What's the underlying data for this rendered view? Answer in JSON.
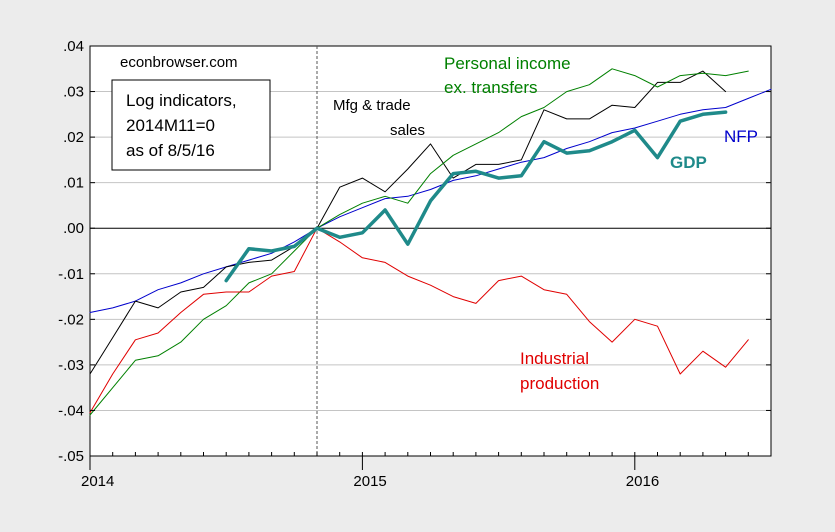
{
  "chart_data": {
    "type": "line",
    "title": "",
    "xlabel": "",
    "ylabel": "",
    "x_start": "2014-01",
    "x_end": "2016-07",
    "xlim": [
      "2014-01",
      "2016-07"
    ],
    "ylim": [
      -0.05,
      0.04
    ],
    "grid": true,
    "vline_at": "2014-11",
    "hline_at": 0,
    "legend_box": {
      "position": "top-left",
      "watermark": "econbrowser.com",
      "lines": [
        "Log indicators,",
        "2014M11=0",
        "as of 8/5/16"
      ]
    },
    "x_ticks": [
      {
        "date": "2014-01",
        "label": "2014"
      },
      {
        "date": "2015-01",
        "label": "2015"
      },
      {
        "date": "2016-01",
        "label": "2016"
      }
    ],
    "y_ticks": [
      {
        "value": 0.04,
        "label": ".04"
      },
      {
        "value": 0.03,
        "label": ".03"
      },
      {
        "value": 0.02,
        "label": ".02"
      },
      {
        "value": 0.01,
        "label": ".01"
      },
      {
        "value": 0.0,
        "label": ".00"
      },
      {
        "value": -0.01,
        "label": "-.01"
      },
      {
        "value": -0.02,
        "label": "-.02"
      },
      {
        "value": -0.03,
        "label": "-.03"
      },
      {
        "value": -0.04,
        "label": "-.04"
      },
      {
        "value": -0.05,
        "label": "-.05"
      }
    ],
    "series": [
      {
        "name": "NFP",
        "color": "#0000cc",
        "width": 1,
        "points": [
          [
            "2014-01",
            -0.0185
          ],
          [
            "2014-02",
            -0.0175
          ],
          [
            "2014-03",
            -0.016
          ],
          [
            "2014-04",
            -0.0135
          ],
          [
            "2014-05",
            -0.012
          ],
          [
            "2014-06",
            -0.01
          ],
          [
            "2014-07",
            -0.0085
          ],
          [
            "2014-08",
            -0.007
          ],
          [
            "2014-09",
            -0.0055
          ],
          [
            "2014-10",
            -0.003
          ],
          [
            "2014-11",
            0.0
          ],
          [
            "2014-12",
            0.0025
          ],
          [
            "2015-01",
            0.0045
          ],
          [
            "2015-02",
            0.0065
          ],
          [
            "2015-03",
            0.007
          ],
          [
            "2015-04",
            0.0085
          ],
          [
            "2015-05",
            0.0105
          ],
          [
            "2015-06",
            0.0115
          ],
          [
            "2015-07",
            0.013
          ],
          [
            "2015-08",
            0.0145
          ],
          [
            "2015-09",
            0.0155
          ],
          [
            "2015-10",
            0.0175
          ],
          [
            "2015-11",
            0.019
          ],
          [
            "2015-12",
            0.021
          ],
          [
            "2016-01",
            0.022
          ],
          [
            "2016-02",
            0.0235
          ],
          [
            "2016-03",
            0.025
          ],
          [
            "2016-04",
            0.026
          ],
          [
            "2016-05",
            0.0265
          ],
          [
            "2016-06",
            0.0285
          ],
          [
            "2016-07",
            0.0305
          ]
        ]
      },
      {
        "name": "Mfg & trade sales",
        "color": "#000000",
        "width": 1,
        "points": [
          [
            "2014-01",
            -0.032
          ],
          [
            "2014-02",
            -0.024
          ],
          [
            "2014-03",
            -0.016
          ],
          [
            "2014-04",
            -0.0175
          ],
          [
            "2014-05",
            -0.014
          ],
          [
            "2014-06",
            -0.013
          ],
          [
            "2014-07",
            -0.0085
          ],
          [
            "2014-08",
            -0.0075
          ],
          [
            "2014-09",
            -0.007
          ],
          [
            "2014-10",
            -0.004
          ],
          [
            "2014-11",
            0.0
          ],
          [
            "2014-12",
            0.009
          ],
          [
            "2015-01",
            0.011
          ],
          [
            "2015-02",
            0.008
          ],
          [
            "2015-03",
            0.013
          ],
          [
            "2015-04",
            0.0185
          ],
          [
            "2015-05",
            0.011
          ],
          [
            "2015-06",
            0.014
          ],
          [
            "2015-07",
            0.014
          ],
          [
            "2015-08",
            0.015
          ],
          [
            "2015-09",
            0.026
          ],
          [
            "2015-10",
            0.024
          ],
          [
            "2015-11",
            0.024
          ],
          [
            "2015-12",
            0.027
          ],
          [
            "2016-01",
            0.0265
          ],
          [
            "2016-02",
            0.032
          ],
          [
            "2016-03",
            0.032
          ],
          [
            "2016-04",
            0.0345
          ],
          [
            "2016-05",
            0.03
          ]
        ]
      },
      {
        "name": "Personal income ex. transfers",
        "color": "#008000",
        "width": 1,
        "points": [
          [
            "2014-01",
            -0.041
          ],
          [
            "2014-02",
            -0.035
          ],
          [
            "2014-03",
            -0.029
          ],
          [
            "2014-04",
            -0.028
          ],
          [
            "2014-05",
            -0.025
          ],
          [
            "2014-06",
            -0.02
          ],
          [
            "2014-07",
            -0.017
          ],
          [
            "2014-08",
            -0.012
          ],
          [
            "2014-09",
            -0.01
          ],
          [
            "2014-10",
            -0.005
          ],
          [
            "2014-11",
            0.0
          ],
          [
            "2014-12",
            0.003
          ],
          [
            "2015-01",
            0.0055
          ],
          [
            "2015-02",
            0.007
          ],
          [
            "2015-03",
            0.0055
          ],
          [
            "2015-04",
            0.012
          ],
          [
            "2015-05",
            0.016
          ],
          [
            "2015-06",
            0.0185
          ],
          [
            "2015-07",
            0.021
          ],
          [
            "2015-08",
            0.0245
          ],
          [
            "2015-09",
            0.0265
          ],
          [
            "2015-10",
            0.03
          ],
          [
            "2015-11",
            0.0315
          ],
          [
            "2015-12",
            0.035
          ],
          [
            "2016-01",
            0.0335
          ],
          [
            "2016-02",
            0.031
          ],
          [
            "2016-03",
            0.0335
          ],
          [
            "2016-04",
            0.034
          ],
          [
            "2016-05",
            0.0335
          ],
          [
            "2016-06",
            0.0345
          ]
        ]
      },
      {
        "name": "Industrial production",
        "color": "#e00000",
        "width": 1,
        "points": [
          [
            "2014-01",
            -0.0405
          ],
          [
            "2014-02",
            -0.032
          ],
          [
            "2014-03",
            -0.0245
          ],
          [
            "2014-04",
            -0.023
          ],
          [
            "2014-05",
            -0.0185
          ],
          [
            "2014-06",
            -0.0145
          ],
          [
            "2014-07",
            -0.014
          ],
          [
            "2014-08",
            -0.014
          ],
          [
            "2014-09",
            -0.0105
          ],
          [
            "2014-10",
            -0.0095
          ],
          [
            "2014-11",
            0.0
          ],
          [
            "2014-12",
            -0.003
          ],
          [
            "2015-01",
            -0.0065
          ],
          [
            "2015-02",
            -0.0075
          ],
          [
            "2015-03",
            -0.0105
          ],
          [
            "2015-04",
            -0.0125
          ],
          [
            "2015-05",
            -0.015
          ],
          [
            "2015-06",
            -0.0165
          ],
          [
            "2015-07",
            -0.0115
          ],
          [
            "2015-08",
            -0.0105
          ],
          [
            "2015-09",
            -0.0135
          ],
          [
            "2015-10",
            -0.0145
          ],
          [
            "2015-11",
            -0.0205
          ],
          [
            "2015-12",
            -0.025
          ],
          [
            "2016-01",
            -0.02
          ],
          [
            "2016-02",
            -0.0215
          ],
          [
            "2016-03",
            -0.032
          ],
          [
            "2016-04",
            -0.027
          ],
          [
            "2016-05",
            -0.0305
          ],
          [
            "2016-06",
            -0.0245
          ]
        ]
      },
      {
        "name": "GDP",
        "color": "#1f8a8a",
        "width": 3.5,
        "points": [
          [
            "2014-07",
            -0.0115
          ],
          [
            "2014-08",
            -0.0045
          ],
          [
            "2014-09",
            -0.005
          ],
          [
            "2014-10",
            -0.004
          ],
          [
            "2014-11",
            0.0
          ],
          [
            "2014-12",
            -0.002
          ],
          [
            "2015-01",
            -0.001
          ],
          [
            "2015-02",
            0.004
          ],
          [
            "2015-03",
            -0.0035
          ],
          [
            "2015-04",
            0.006
          ],
          [
            "2015-05",
            0.012
          ],
          [
            "2015-06",
            0.0125
          ],
          [
            "2015-07",
            0.011
          ],
          [
            "2015-08",
            0.0115
          ],
          [
            "2015-09",
            0.019
          ],
          [
            "2015-10",
            0.0165
          ],
          [
            "2015-11",
            0.017
          ],
          [
            "2015-12",
            0.019
          ],
          [
            "2016-01",
            0.0215
          ],
          [
            "2016-02",
            0.0155
          ],
          [
            "2016-03",
            0.0235
          ],
          [
            "2016-04",
            0.025
          ],
          [
            "2016-05",
            0.0255
          ]
        ]
      }
    ],
    "annotations": [
      {
        "lines": [
          "Personal income",
          "ex. transfers"
        ],
        "color": "#008000",
        "style": "big"
      },
      {
        "lines": [
          "Mfg & trade",
          "sales"
        ],
        "color": "#000000",
        "style": "normal"
      },
      {
        "lines": [
          "NFP"
        ],
        "color": "#0000cc",
        "style": "big"
      },
      {
        "lines": [
          "GDP"
        ],
        "color": "#1f8a8a",
        "style": "bold"
      },
      {
        "lines": [
          "Industrial",
          "production"
        ],
        "color": "#e00000",
        "style": "big"
      }
    ]
  }
}
